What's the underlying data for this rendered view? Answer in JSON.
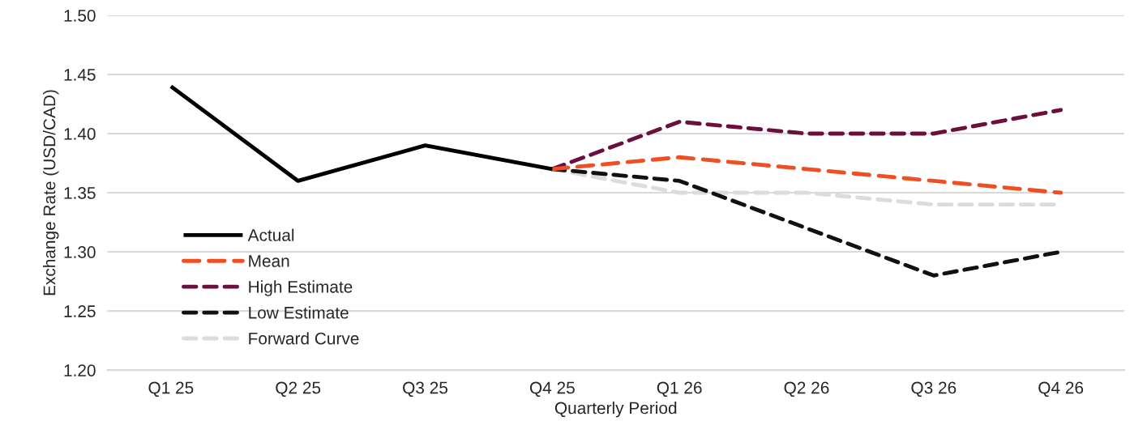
{
  "chart_data": {
    "type": "line",
    "xlabel": "Quarterly Period",
    "ylabel": "Exchange Rate (USD/CAD)",
    "categories": [
      "Q1 25",
      "Q2 25",
      "Q3 25",
      "Q4 25",
      "Q1 26",
      "Q2 26",
      "Q3 26",
      "Q4 26"
    ],
    "series": [
      {
        "name": "Actual",
        "color": "#000000",
        "line_style": "solid",
        "values": [
          1.44,
          1.36,
          1.39,
          1.37,
          null,
          null,
          null,
          null
        ]
      },
      {
        "name": "Mean",
        "color": "#f04e23",
        "line_style": "dashed",
        "values": [
          null,
          null,
          null,
          1.37,
          1.38,
          1.37,
          1.36,
          1.35
        ]
      },
      {
        "name": "High Estimate",
        "color": "#6b0f3f",
        "line_style": "dashed",
        "values": [
          null,
          null,
          null,
          1.37,
          1.41,
          1.4,
          1.4,
          1.42
        ]
      },
      {
        "name": "Low Estimate",
        "color": "#111111",
        "line_style": "dashed",
        "values": [
          null,
          null,
          null,
          1.37,
          1.36,
          1.32,
          1.28,
          1.3
        ]
      },
      {
        "name": "Forward Curve",
        "color": "#dcdcdc",
        "line_style": "dashed",
        "values": [
          null,
          null,
          null,
          1.37,
          1.35,
          1.35,
          1.34,
          1.34
        ]
      }
    ],
    "ylim": [
      1.2,
      1.5
    ],
    "yticks": [
      {
        "value": 1.2,
        "label": "1.20"
      },
      {
        "value": 1.25,
        "label": "1.25"
      },
      {
        "value": 1.3,
        "label": "1.30"
      },
      {
        "value": 1.35,
        "label": "1.35"
      },
      {
        "value": 1.4,
        "label": "1.40"
      },
      {
        "value": 1.45,
        "label": "1.45"
      },
      {
        "value": 1.5,
        "label": "1.50"
      }
    ],
    "grid": "y",
    "legend": "bottom left",
    "marker": "none"
  }
}
